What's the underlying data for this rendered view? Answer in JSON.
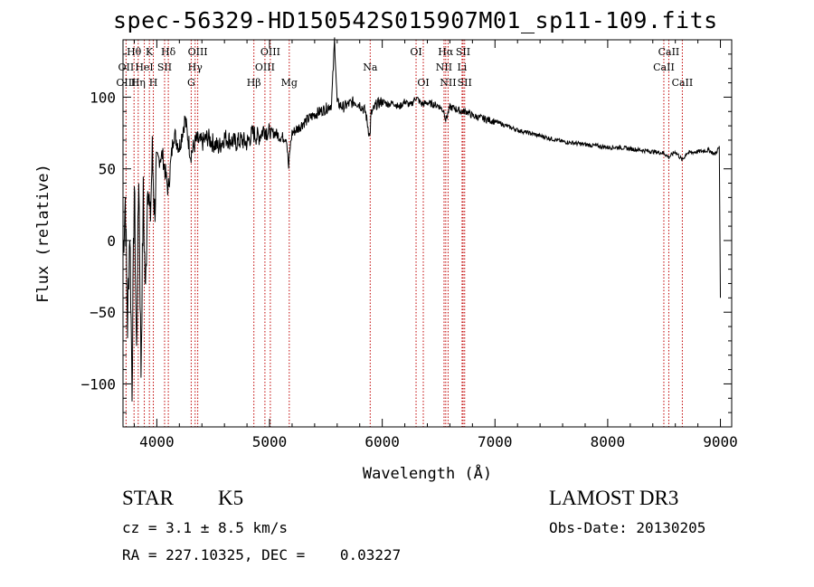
{
  "chart_data": {
    "type": "line",
    "title": "spec-56329-HD150542S015907M01_sp11-109.fits",
    "xlabel": "Wavelength (Å)",
    "ylabel": "Flux (relative)",
    "xlim": [
      3700,
      9100
    ],
    "ylim": [
      -130,
      140
    ],
    "xticks": [
      4000,
      5000,
      6000,
      7000,
      8000,
      9000
    ],
    "yticks": [
      -100,
      -50,
      0,
      50,
      100
    ],
    "xtick_labels": [
      "4000",
      "5000",
      "6000",
      "7000",
      "8000",
      "9000"
    ],
    "ytick_labels": [
      "−100",
      "−50",
      "0",
      "50",
      "100"
    ],
    "series": [
      {
        "name": "spectrum",
        "x": [
          3700,
          3720,
          3740,
          3760,
          3780,
          3800,
          3820,
          3840,
          3860,
          3880,
          3900,
          3920,
          3940,
          3960,
          3980,
          4000,
          4050,
          4100,
          4150,
          4200,
          4250,
          4300,
          4350,
          4400,
          4450,
          4500,
          4550,
          4600,
          4650,
          4700,
          4750,
          4800,
          4850,
          4900,
          4950,
          5000,
          5050,
          5100,
          5150,
          5170,
          5183,
          5200,
          5250,
          5300,
          5350,
          5400,
          5450,
          5500,
          5550,
          5577,
          5600,
          5650,
          5700,
          5750,
          5800,
          5850,
          5890,
          5900,
          5950,
          6000,
          6050,
          6100,
          6150,
          6200,
          6250,
          6300,
          6350,
          6400,
          6450,
          6500,
          6550,
          6563,
          6600,
          6650,
          6700,
          6750,
          6800,
          6900,
          7000,
          7100,
          7200,
          7300,
          7400,
          7500,
          7600,
          7700,
          7800,
          7900,
          8000,
          8100,
          8200,
          8300,
          8400,
          8500,
          8542,
          8600,
          8662,
          8700,
          8800,
          8900,
          8950,
          8990,
          9000
        ],
        "y": [
          -10,
          30,
          -60,
          10,
          -100,
          40,
          -80,
          50,
          -90,
          30,
          -40,
          50,
          10,
          60,
          20,
          55,
          60,
          35,
          75,
          65,
          85,
          60,
          70,
          68,
          72,
          68,
          65,
          72,
          70,
          68,
          70,
          68,
          75,
          72,
          78,
          75,
          75,
          72,
          72,
          50,
          65,
          75,
          78,
          82,
          85,
          88,
          90,
          92,
          95,
          140,
          96,
          93,
          95,
          97,
          95,
          90,
          72,
          88,
          95,
          97,
          95,
          96,
          93,
          97,
          94,
          100,
          95,
          96,
          95,
          94,
          90,
          84,
          93,
          92,
          90,
          90,
          87,
          85,
          83,
          80,
          77,
          75,
          73,
          71,
          69,
          68,
          67,
          66,
          65,
          65,
          64,
          63,
          62,
          61,
          58,
          62,
          56,
          61,
          62,
          63,
          60,
          65,
          -40
        ]
      }
    ],
    "line_labels": [
      {
        "name": "Hθ",
        "wl": 3798,
        "row": 0
      },
      {
        "name": "K",
        "wl": 3934,
        "row": 0
      },
      {
        "name": "Hδ",
        "wl": 4102,
        "row": 0
      },
      {
        "name": "OIII",
        "wl": 4363,
        "row": 0
      },
      {
        "name": "OIII",
        "wl": 5007,
        "row": 0
      },
      {
        "name": "OI",
        "wl": 6300,
        "row": 0
      },
      {
        "name": "Hα",
        "wl": 6563,
        "row": 0
      },
      {
        "name": "SII",
        "wl": 6717,
        "row": 0
      },
      {
        "name": "CaII",
        "wl": 8542,
        "row": 0
      },
      {
        "name": "OII",
        "wl": 3727,
        "row": 1
      },
      {
        "name": "HeI",
        "wl": 3889,
        "row": 1
      },
      {
        "name": "SII",
        "wl": 4069,
        "row": 1
      },
      {
        "name": "Hγ",
        "wl": 4340,
        "row": 1
      },
      {
        "name": "OIII",
        "wl": 4959,
        "row": 1
      },
      {
        "name": "Na",
        "wl": 5893,
        "row": 1
      },
      {
        "name": "NII",
        "wl": 6548,
        "row": 1
      },
      {
        "name": "Li",
        "wl": 6708,
        "row": 1
      },
      {
        "name": "CaII",
        "wl": 8498,
        "row": 1
      },
      {
        "name": "OIII",
        "wl": 3727,
        "row": 2
      },
      {
        "name": "Hη",
        "wl": 3835,
        "row": 2
      },
      {
        "name": "H",
        "wl": 3969,
        "row": 2
      },
      {
        "name": "G",
        "wl": 4305,
        "row": 2
      },
      {
        "name": "Hβ",
        "wl": 4861,
        "row": 2
      },
      {
        "name": "Mg",
        "wl": 5175,
        "row": 2
      },
      {
        "name": "OI",
        "wl": 6364,
        "row": 2
      },
      {
        "name": "NII",
        "wl": 6584,
        "row": 2
      },
      {
        "name": "SII",
        "wl": 6731,
        "row": 2
      },
      {
        "name": "CaII",
        "wl": 8662,
        "row": 2
      }
    ],
    "marker_lines": [
      3727,
      3798,
      3835,
      3889,
      3934,
      3969,
      4069,
      4102,
      4305,
      4340,
      4363,
      4861,
      4959,
      5007,
      5175,
      5893,
      6300,
      6364,
      6548,
      6563,
      6584,
      6708,
      6717,
      6731,
      8498,
      8542,
      8662
    ]
  },
  "info": {
    "class": "STAR",
    "subclass": "K5",
    "survey": "LAMOST DR3",
    "cz": "cz = 3.1 ± 8.5 km/s",
    "obs_date": "Obs-Date: 20130205",
    "radec": "RA = 227.10325, DEC =    0.03227"
  }
}
